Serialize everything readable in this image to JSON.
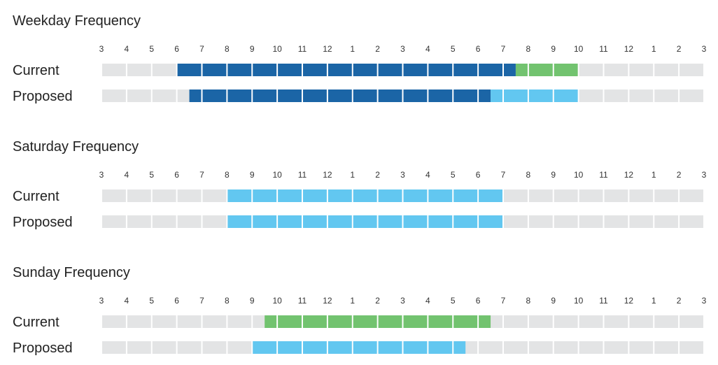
{
  "chart_data": {
    "type": "timeline",
    "tick_labels": [
      "3",
      "4",
      "5",
      "6",
      "7",
      "8",
      "9",
      "10",
      "11",
      "12",
      "1",
      "2",
      "3",
      "4",
      "5",
      "6",
      "7",
      "8",
      "9",
      "10",
      "11",
      "12",
      "1",
      "2",
      "3"
    ],
    "x_range_hours": [
      3,
      27
    ],
    "colors": {
      "empty": "#e3e4e5",
      "dark_blue": "#1b65a6",
      "light_blue": "#62c7f0",
      "green": "#72c36f"
    },
    "sections": [
      {
        "title": "Weekday Frequency",
        "rows": [
          {
            "label": "Current",
            "segments": [
              {
                "start": 6.0,
                "end": 19.5,
                "color": "dark_blue"
              },
              {
                "start": 19.5,
                "end": 22.0,
                "color": "green"
              }
            ]
          },
          {
            "label": "Proposed",
            "segments": [
              {
                "start": 6.5,
                "end": 18.5,
                "color": "dark_blue"
              },
              {
                "start": 18.5,
                "end": 22.0,
                "color": "light_blue"
              }
            ]
          }
        ]
      },
      {
        "title": "Saturday Frequency",
        "rows": [
          {
            "label": "Current",
            "segments": [
              {
                "start": 8.0,
                "end": 19.0,
                "color": "light_blue"
              }
            ]
          },
          {
            "label": "Proposed",
            "segments": [
              {
                "start": 8.0,
                "end": 19.0,
                "color": "light_blue"
              }
            ]
          }
        ]
      },
      {
        "title": "Sunday Frequency",
        "rows": [
          {
            "label": "Current",
            "segments": [
              {
                "start": 9.5,
                "end": 18.5,
                "color": "green"
              }
            ]
          },
          {
            "label": "Proposed",
            "segments": [
              {
                "start": 9.0,
                "end": 17.5,
                "color": "light_blue"
              }
            ]
          }
        ]
      }
    ]
  }
}
